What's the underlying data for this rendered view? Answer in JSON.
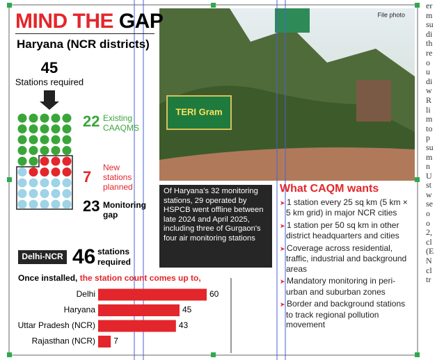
{
  "header": {
    "title_red": "MIND THE",
    "title_black": "GAP",
    "file_photo": "File photo"
  },
  "haryana": {
    "heading": "Haryana (NCR districts)",
    "required": {
      "value": 45,
      "label": "Stations required"
    },
    "existing": {
      "value": 22,
      "label": "Existing CAAQMS"
    },
    "planned": {
      "value": 7,
      "label": "New stations planned"
    },
    "gap": {
      "value": 23,
      "label": "Monitoring gap"
    }
  },
  "delhi_ncr": {
    "tag": "Delhi-NCR",
    "value": 46,
    "label": "stations required"
  },
  "chart_data": {
    "type": "hbar",
    "title_black": "Once installed, ",
    "title_red": "the station count comes up to,",
    "categories": [
      "Delhi",
      "Haryana",
      "Uttar Pradesh (NCR)",
      "Rajasthan (NCR)"
    ],
    "values": [
      60,
      45,
      43,
      7
    ],
    "color": "#e3262b"
  },
  "photo": {
    "sign": "TERI Gram"
  },
  "caption": "Of Haryana's 32 monitoring stations, 29 operated by HSPCB went offline between late 2024 and April 2025, including three of Gurgaon's four air monitoring stations",
  "wants": {
    "heading": "What CAQM wants",
    "items": [
      "1 station every 25 sq km (5 km × 5 km grid) in major NCR cities",
      "1 station per 50 sq km in other district headquarters and cities",
      "Coverage across residential, traffic, industrial and background areas",
      "Mandatory monitoring in peri-urban and suburban zones",
      "Border and background stations to track regional pollution movement"
    ]
  },
  "margin": [
    "er",
    "m",
    "su",
    "di",
    "th",
    "re",
    "o",
    "u",
    "di",
    "w",
    "R",
    "li",
    "m",
    "to",
    "p",
    "su",
    "m",
    "n",
    "U",
    "st",
    "w",
    "se",
    "o",
    "o",
    "2,",
    "cl",
    "(E",
    "N",
    "cl",
    "tr"
  ]
}
